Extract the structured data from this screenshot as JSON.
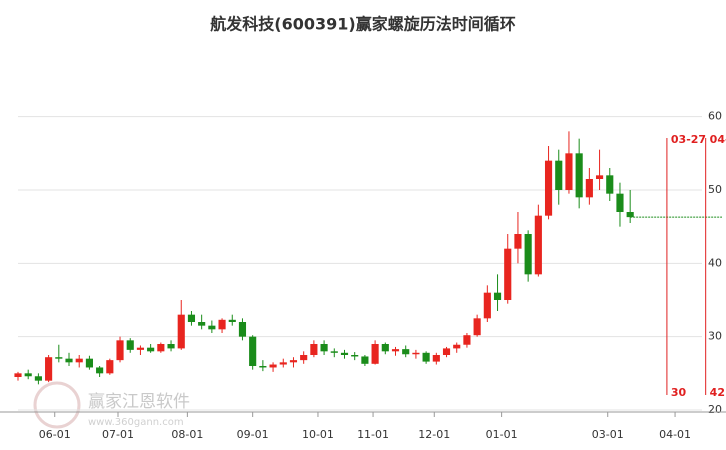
{
  "chart_data": {
    "type": "candlestick",
    "title": "航发科技(600391)赢家螺旋历法时间循环",
    "watermark": "赢家江恩软件",
    "watermark_url": "www.360gann.com",
    "up_color": "#e8251f",
    "down_color": "#1a8c1a",
    "grid": true,
    "xlim": [
      0,
      345
    ],
    "ylim": [
      20,
      68
    ],
    "yticks": [
      20,
      30,
      40,
      50,
      60
    ],
    "xticks": [
      {
        "value": 18,
        "label": "06-01"
      },
      {
        "value": 49,
        "label": "07-01"
      },
      {
        "value": 83,
        "label": "08-01"
      },
      {
        "value": 115,
        "label": "09-01"
      },
      {
        "value": 147,
        "label": "10-01"
      },
      {
        "value": 174,
        "label": "11-01"
      },
      {
        "value": 204,
        "label": "12-01"
      },
      {
        "value": 237,
        "label": "01-01"
      },
      {
        "value": 289,
        "label": "03-01"
      },
      {
        "value": 322,
        "label": "04-01"
      }
    ],
    "x": [
      0,
      5,
      10,
      15,
      20,
      25,
      30,
      35,
      40,
      45,
      50,
      55,
      60,
      65,
      70,
      75,
      80,
      85,
      90,
      95,
      100,
      105,
      110,
      115,
      120,
      125,
      130,
      135,
      140,
      145,
      150,
      155,
      160,
      165,
      170,
      175,
      180,
      185,
      190,
      195,
      200,
      205,
      210,
      215,
      220,
      225,
      230,
      235,
      240,
      245,
      250,
      255,
      260,
      265,
      270,
      275,
      280,
      285,
      290,
      295,
      300
    ],
    "open": [
      24.5,
      25,
      24.6,
      24,
      27.2,
      27,
      26.5,
      27,
      25.8,
      25,
      26.8,
      29.5,
      28.2,
      28.5,
      28,
      29,
      28.4,
      33,
      32,
      31.5,
      31,
      32.3,
      32,
      30,
      26,
      25.8,
      26.2,
      26.5,
      26.8,
      27.5,
      29,
      28,
      27.8,
      27.5,
      27.3,
      26.3,
      29,
      28,
      28.3,
      27.6,
      27.8,
      26.6,
      27.5,
      28.4,
      28.9,
      30.2,
      32.5,
      36,
      35,
      42,
      44,
      38.5,
      46.5,
      54,
      50,
      55,
      49,
      51.5,
      52,
      49.5,
      47
    ],
    "high": [
      25.2,
      25.5,
      25,
      27.5,
      28.9,
      27.8,
      27.5,
      27.4,
      26,
      27,
      30,
      29.8,
      28.8,
      29,
      29.2,
      29.5,
      35,
      33.5,
      33,
      32.2,
      32.5,
      33,
      32.5,
      30.2,
      26.8,
      26.5,
      27,
      27.2,
      28,
      29.5,
      29.5,
      28.4,
      28.2,
      27.9,
      27.5,
      29.5,
      29.2,
      28.6,
      28.8,
      28.2,
      28,
      27.8,
      28.6,
      29.2,
      30.5,
      33,
      37,
      38.5,
      44,
      47,
      44.5,
      48,
      56,
      55.5,
      58,
      57,
      53,
      55.5,
      53,
      51,
      50
    ],
    "low": [
      24,
      24.2,
      23.5,
      23.8,
      26.5,
      26,
      25.8,
      25.5,
      24.5,
      24.8,
      26.5,
      27.8,
      27.5,
      27.8,
      27.8,
      28,
      28.2,
      31.5,
      31,
      30.5,
      30.5,
      31.5,
      29.5,
      25.5,
      25.3,
      25.2,
      25.8,
      25.8,
      26.3,
      27.2,
      27.5,
      27.2,
      27,
      26.8,
      26,
      26.2,
      27.6,
      27.4,
      27.2,
      27,
      26.3,
      26.2,
      27.2,
      27.8,
      28.5,
      30,
      32,
      33.5,
      34.5,
      40,
      37.5,
      38.2,
      46,
      48,
      49.5,
      47.5,
      48,
      50,
      48.5,
      45,
      45.5
    ],
    "close": [
      25,
      24.6,
      24,
      27.2,
      27,
      26.5,
      27,
      25.8,
      25,
      26.8,
      29.5,
      28.2,
      28.5,
      28,
      29,
      28.4,
      33,
      32,
      31.5,
      31,
      32.3,
      32,
      30,
      26,
      25.8,
      26.2,
      26.5,
      26.8,
      27.5,
      29,
      28,
      27.8,
      27.5,
      27.3,
      26.3,
      29,
      28,
      28.3,
      27.6,
      27.8,
      26.6,
      27.5,
      28.4,
      28.9,
      30.2,
      32.5,
      36,
      35,
      42,
      44,
      38.5,
      46.5,
      54,
      50,
      55,
      49,
      51.5,
      52,
      49.5,
      47,
      46.3
    ],
    "annotations": [
      {
        "x": 318,
        "label_top": "03-27",
        "label_bottom": "30"
      },
      {
        "x": 337,
        "label_top": "04-",
        "label_bottom": "42"
      }
    ]
  }
}
